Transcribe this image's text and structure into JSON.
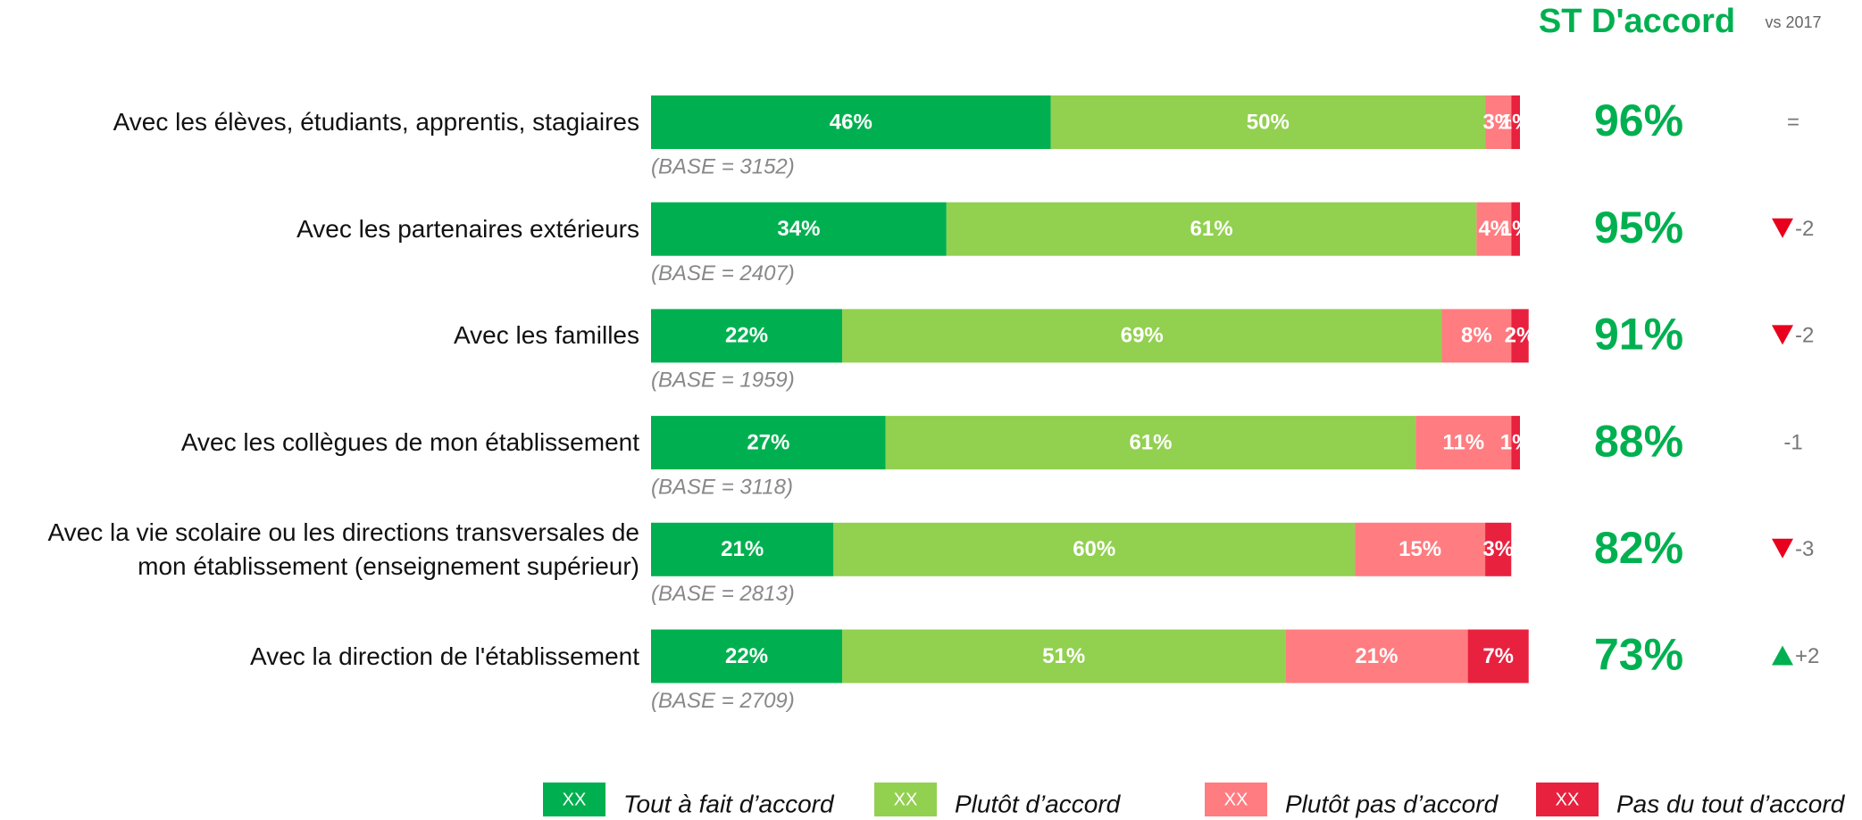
{
  "chart_data": {
    "type": "stacked-bar-horizontal",
    "categories": [
      "Avec les élèves, étudiants, apprentis, stagiaires",
      "Avec les partenaires extérieurs",
      "Avec les familles",
      "Avec les collègues de mon établissement",
      "Avec la vie scolaire ou les directions transversales de mon établissement (enseignement supérieur)",
      "Avec la direction de l'établissement"
    ],
    "bases": [
      "(BASE = 3152)",
      "(BASE = 2407)",
      "(BASE = 1959)",
      "(BASE = 3118)",
      "(BASE = 2813)",
      "(BASE = 2709)"
    ],
    "xlim": [
      0,
      100
    ],
    "series": [
      {
        "name": "Tout à fait d’accord",
        "color": "#00b050",
        "values": [
          46,
          34,
          22,
          27,
          21,
          22
        ],
        "value_labels": [
          "46%",
          "34%",
          "22%",
          "27%",
          "21%",
          "22%"
        ]
      },
      {
        "name": "Plutôt d’accord",
        "color": "#92d050",
        "values": [
          50,
          61,
          69,
          61,
          60,
          51
        ],
        "value_labels": [
          "50%",
          "61%",
          "69%",
          "61%",
          "60%",
          "51%"
        ]
      },
      {
        "name": "Plutôt pas d’accord",
        "color": "#ff7c80",
        "values": [
          3,
          4,
          8,
          11,
          15,
          21
        ],
        "value_labels": [
          "3%",
          "4%",
          "8%",
          "11%",
          "15%",
          "21%"
        ]
      },
      {
        "name": "Pas du tout d’accord",
        "color": "#e8213f",
        "values": [
          1,
          1,
          2,
          1,
          3,
          7
        ],
        "value_labels": [
          "1%",
          "1%",
          "2%",
          "1%",
          "3%",
          "7%"
        ]
      }
    ],
    "st_title": "ST D'accord",
    "st_color": "#00b050",
    "st_values": [
      96,
      95,
      91,
      88,
      82,
      73
    ],
    "st_labels": [
      "96%",
      "95%",
      "91%",
      "88%",
      "82%",
      "73%"
    ],
    "vs_title": "vs 2017",
    "vs_labels": [
      "=",
      "-2",
      "-2",
      "-1",
      "-3",
      "+2"
    ],
    "vs_trend": [
      "none",
      "down",
      "down",
      "none",
      "down",
      "up"
    ],
    "legend_swatch_text": "XX"
  }
}
